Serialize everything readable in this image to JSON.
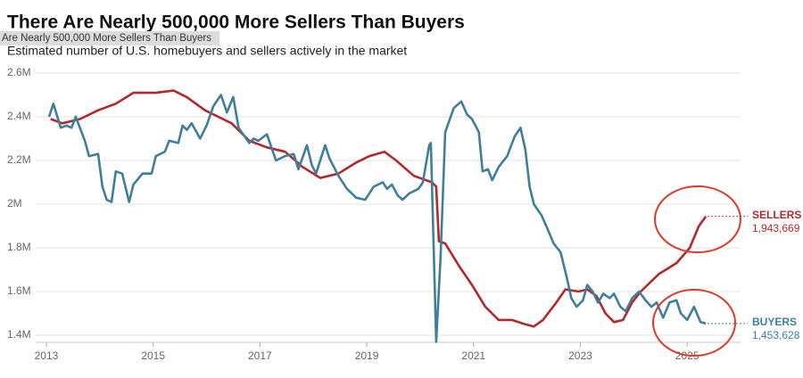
{
  "chart_data": {
    "type": "line",
    "title": "There Are Nearly 500,000 More Sellers Than Buyers",
    "tooltip": "Are Nearly 500,000 More Sellers Than Buyers",
    "subtitle": "Estimated number of U.S. homebuyers and sellers actively in the market",
    "xlim": [
      2012.8,
      2026
    ],
    "xticks": [
      2013,
      2015,
      2017,
      2019,
      2021,
      2023,
      2025
    ],
    "ylim": [
      1400000,
      2600000
    ],
    "yticks": [
      {
        "value": 1400000,
        "label": "1.4M"
      },
      {
        "value": 1600000,
        "label": "1.6M"
      },
      {
        "value": 1800000,
        "label": "1.8M"
      },
      {
        "value": 2000000,
        "label": "2M"
      },
      {
        "value": 2200000,
        "label": "2.2M"
      },
      {
        "value": 2400000,
        "label": "2.4M"
      },
      {
        "value": 2600000,
        "label": "2.6M"
      }
    ],
    "grid": true,
    "series": [
      {
        "name": "SELLERS",
        "color": "#b3292b",
        "end_label": "1,943,669",
        "x": [
          2013.08,
          2013.3,
          2013.63,
          2013.97,
          2014.3,
          2014.63,
          2015.05,
          2015.38,
          2015.63,
          2015.97,
          2016.47,
          2016.8,
          2017.13,
          2017.47,
          2017.8,
          2018.13,
          2018.47,
          2018.8,
          2019.05,
          2019.33,
          2019.55,
          2019.88,
          2020.22,
          2020.3,
          2020.35,
          2020.47,
          2020.72,
          2020.97,
          2021.22,
          2021.47,
          2021.72,
          2021.97,
          2022.13,
          2022.3,
          2022.55,
          2022.72,
          2022.97,
          2023.13,
          2023.3,
          2023.47,
          2023.63,
          2023.8,
          2023.97,
          2024.13,
          2024.47,
          2024.8,
          2025.05,
          2025.22,
          2025.35
        ],
        "values": [
          2390000,
          2370000,
          2390000,
          2430000,
          2460000,
          2510000,
          2510000,
          2520000,
          2490000,
          2430000,
          2370000,
          2290000,
          2260000,
          2240000,
          2170000,
          2120000,
          2140000,
          2190000,
          2220000,
          2240000,
          2200000,
          2130000,
          2100000,
          2080000,
          1830000,
          1820000,
          1720000,
          1630000,
          1530000,
          1470000,
          1470000,
          1450000,
          1440000,
          1470000,
          1550000,
          1610000,
          1600000,
          1610000,
          1580000,
          1500000,
          1460000,
          1470000,
          1550000,
          1600000,
          1680000,
          1730000,
          1800000,
          1900000,
          1943669
        ]
      },
      {
        "name": "BUYERS",
        "color": "#3f7f9c",
        "end_label": "1,453,628",
        "x": [
          2013.05,
          2013.13,
          2013.27,
          2013.38,
          2013.47,
          2013.55,
          2013.72,
          2013.8,
          2013.97,
          2014.05,
          2014.13,
          2014.22,
          2014.3,
          2014.42,
          2014.55,
          2014.63,
          2014.8,
          2014.97,
          2015.05,
          2015.22,
          2015.3,
          2015.47,
          2015.55,
          2015.63,
          2015.72,
          2015.88,
          2016,
          2016.13,
          2016.27,
          2016.38,
          2016.5,
          2016.6,
          2016.8,
          2016.88,
          2016.97,
          2017.13,
          2017.3,
          2017.47,
          2017.63,
          2017.72,
          2017.88,
          2017.97,
          2018.05,
          2018.22,
          2018.3,
          2018.47,
          2018.63,
          2018.8,
          2018.97,
          2019.13,
          2019.3,
          2019.38,
          2019.47,
          2019.58,
          2019.67,
          2019.8,
          2019.97,
          2020.05,
          2020.17,
          2020.2,
          2020.3,
          2020.38,
          2020.47,
          2020.63,
          2020.77,
          2020.88,
          2020.97,
          2021.1,
          2021.17,
          2021.27,
          2021.35,
          2021.47,
          2021.63,
          2021.77,
          2021.88,
          2021.97,
          2022.05,
          2022.13,
          2022.27,
          2022.38,
          2022.5,
          2022.63,
          2022.75,
          2022.83,
          2022.93,
          2023.05,
          2023.13,
          2023.23,
          2023.33,
          2023.43,
          2023.55,
          2023.63,
          2023.75,
          2023.85,
          2023.97,
          2024.1,
          2024.22,
          2024.33,
          2024.43,
          2024.55,
          2024.67,
          2024.8,
          2024.88,
          2025,
          2025.13,
          2025.25,
          2025.35
        ],
        "values": [
          2400000,
          2460000,
          2350000,
          2360000,
          2350000,
          2400000,
          2290000,
          2220000,
          2230000,
          2080000,
          2020000,
          2010000,
          2150000,
          2140000,
          2010000,
          2090000,
          2140000,
          2140000,
          2220000,
          2240000,
          2290000,
          2280000,
          2360000,
          2340000,
          2370000,
          2300000,
          2360000,
          2450000,
          2500000,
          2420000,
          2490000,
          2350000,
          2280000,
          2300000,
          2290000,
          2320000,
          2200000,
          2220000,
          2230000,
          2160000,
          2270000,
          2180000,
          2140000,
          2270000,
          2210000,
          2130000,
          2070000,
          2030000,
          2020000,
          2080000,
          2100000,
          2070000,
          2090000,
          2040000,
          2020000,
          2050000,
          2070000,
          2100000,
          2270000,
          2280000,
          1370000,
          1750000,
          2330000,
          2440000,
          2470000,
          2410000,
          2390000,
          2330000,
          2150000,
          2160000,
          2110000,
          2170000,
          2220000,
          2310000,
          2350000,
          2250000,
          2080000,
          2000000,
          1950000,
          1890000,
          1820000,
          1780000,
          1660000,
          1570000,
          1530000,
          1560000,
          1630000,
          1600000,
          1550000,
          1590000,
          1570000,
          1590000,
          1530000,
          1510000,
          1570000,
          1600000,
          1560000,
          1530000,
          1550000,
          1480000,
          1550000,
          1560000,
          1500000,
          1470000,
          1530000,
          1460000,
          1453628
        ]
      }
    ]
  }
}
